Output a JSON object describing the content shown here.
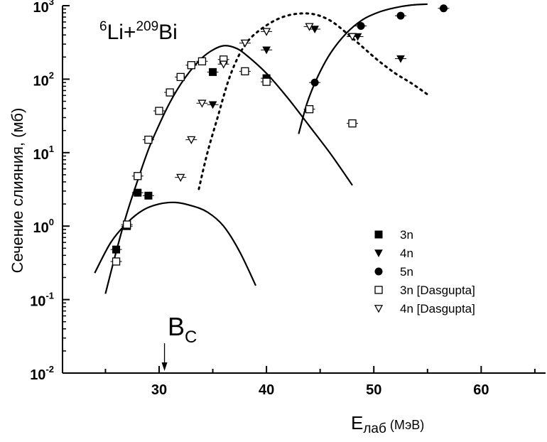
{
  "chart_data": {
    "type": "scatter",
    "title": "6Li+209Bi",
    "title_parts": {
      "a_mass": "6",
      "a_sym": "Li+",
      "b_mass": "209",
      "b_sym": "Bi"
    },
    "xlabel": "Eлаб (МэВ)",
    "xlabel_parts": {
      "main": "E",
      "sub": "лаб",
      "unit": "(МэВ)"
    },
    "ylabel": "Сечение слияния, (мб)",
    "xlim": [
      21,
      66
    ],
    "ylim": [
      0.01,
      1000
    ],
    "yscale": "log",
    "x_ticks": [
      30,
      40,
      50,
      60
    ],
    "x_tick_labels": [
      "30",
      "40",
      "50",
      "60"
    ],
    "y_ticks": [
      0.01,
      0.1,
      1,
      10,
      100,
      1000
    ],
    "y_tick_labels": [
      {
        "base": "10",
        "exp": "-2"
      },
      {
        "base": "10",
        "exp": "-1"
      },
      {
        "base": "10",
        "exp": "0"
      },
      {
        "base": "10",
        "exp": "1"
      },
      {
        "base": "10",
        "exp": "2"
      },
      {
        "base": "10",
        "exp": "3"
      }
    ],
    "grid": false,
    "legend_position": "right-middle",
    "annotation": {
      "base": "B",
      "sub": "C",
      "x": 30.5
    },
    "series": [
      {
        "name": "3n",
        "marker": "square-filled",
        "points": [
          [
            26,
            0.48
          ],
          [
            27,
            1.0
          ],
          [
            28,
            2.85
          ],
          [
            29,
            2.6
          ],
          [
            35,
            125
          ],
          [
            40,
            103
          ]
        ]
      },
      {
        "name": "4n",
        "marker": "triangle-down-filled",
        "points": [
          [
            35,
            45
          ],
          [
            40,
            250
          ],
          [
            44.5,
            480
          ],
          [
            48.5,
            380
          ],
          [
            52.5,
            190
          ]
        ]
      },
      {
        "name": "5n",
        "marker": "circle-filled",
        "points": [
          [
            44.5,
            90
          ],
          [
            48.8,
            530
          ],
          [
            52.5,
            730
          ],
          [
            56.5,
            920
          ]
        ]
      },
      {
        "name": "3n [Dasgupta]",
        "marker": "square-open",
        "points": [
          [
            26,
            0.33
          ],
          [
            27,
            1.05
          ],
          [
            28,
            4.8
          ],
          [
            29,
            15
          ],
          [
            30,
            37
          ],
          [
            31,
            66
          ],
          [
            32,
            107
          ],
          [
            33,
            155
          ],
          [
            34,
            175
          ],
          [
            36,
            185
          ],
          [
            38,
            128
          ],
          [
            40,
            92
          ],
          [
            44,
            39
          ],
          [
            48,
            25
          ]
        ]
      },
      {
        "name": "4n [Dasgupta]",
        "marker": "triangle-down-open",
        "points": [
          [
            32,
            4.6
          ],
          [
            33,
            15
          ],
          [
            34,
            47
          ],
          [
            36,
            160
          ],
          [
            38,
            310
          ],
          [
            40,
            445
          ],
          [
            44,
            520
          ],
          [
            48,
            380
          ]
        ]
      }
    ],
    "curves": [
      {
        "style": "solid",
        "points": [
          [
            24,
            0.23
          ],
          [
            25.5,
            0.6
          ],
          [
            27,
            1.1
          ],
          [
            28.5,
            1.65
          ],
          [
            30,
            2.0
          ],
          [
            31.5,
            2.1
          ],
          [
            33,
            1.9
          ],
          [
            34.5,
            1.55
          ],
          [
            36,
            1.0
          ],
          [
            37.5,
            0.45
          ],
          [
            39,
            0.155
          ]
        ]
      },
      {
        "style": "solid",
        "points": [
          [
            25,
            0.12
          ],
          [
            26,
            0.45
          ],
          [
            27,
            1.5
          ],
          [
            28,
            4.2
          ],
          [
            29,
            11
          ],
          [
            30,
            24
          ],
          [
            31,
            48
          ],
          [
            32,
            85
          ],
          [
            33,
            135
          ],
          [
            34,
            195
          ],
          [
            35,
            250
          ],
          [
            36,
            285
          ],
          [
            37,
            270
          ],
          [
            38,
            220
          ],
          [
            40,
            120
          ],
          [
            42,
            55
          ],
          [
            44,
            23
          ],
          [
            46,
            9.5
          ],
          [
            48,
            3.6
          ]
        ]
      },
      {
        "style": "dotted",
        "points": [
          [
            33.7,
            3.2
          ],
          [
            34.5,
            10
          ],
          [
            35.5,
            32
          ],
          [
            36.5,
            100
          ],
          [
            37.5,
            220
          ],
          [
            38.5,
            360
          ],
          [
            40,
            540
          ],
          [
            41.5,
            700
          ],
          [
            43,
            780
          ],
          [
            44.5,
            760
          ],
          [
            46,
            620
          ],
          [
            47.5,
            420
          ],
          [
            49,
            270
          ],
          [
            50.5,
            175
          ],
          [
            52,
            120
          ],
          [
            53.5,
            88
          ],
          [
            55,
            62
          ]
        ]
      },
      {
        "style": "solid",
        "points": [
          [
            43,
            18
          ],
          [
            43.8,
            48
          ],
          [
            44.8,
            110
          ],
          [
            46,
            230
          ],
          [
            47.5,
            430
          ],
          [
            49,
            650
          ],
          [
            50.5,
            820
          ],
          [
            52,
            940
          ],
          [
            53.5,
            1020
          ],
          [
            55,
            1050
          ]
        ]
      }
    ]
  }
}
